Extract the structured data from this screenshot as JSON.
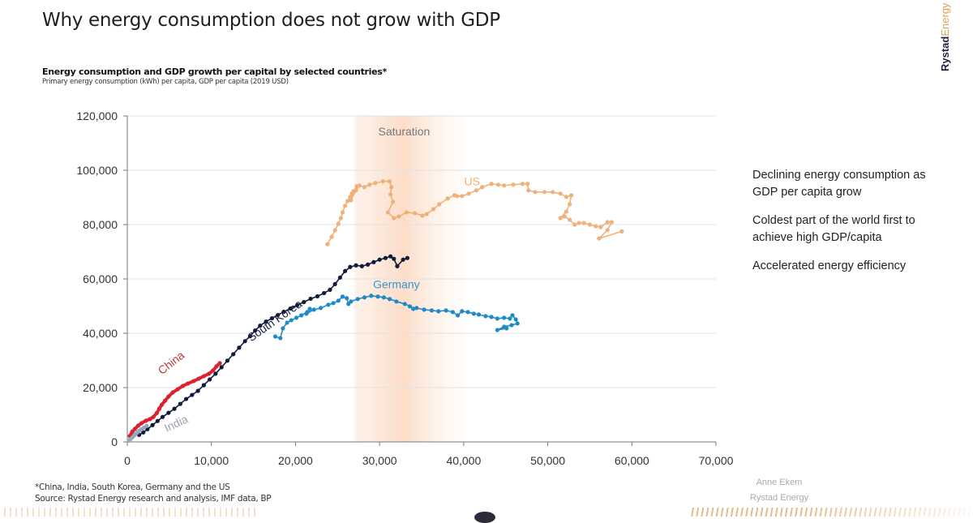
{
  "page": {
    "title": "Why energy consumption does not grow with GDP",
    "brand_part1": "Rystad",
    "brand_part2": "Energy",
    "notes": [
      "Declining energy consumption as GDP per capita grow",
      "Coldest part of the world first to achieve high GDP/capita",
      "Accelerated energy efficiency"
    ],
    "footnote_line1": "*China, India, South Korea, Germany and the US",
    "footnote_line2": "Source: Rystad Energy research and analysis, IMF data, BP",
    "author_name": "Anne Ekem",
    "author_org": "Rystad Energy"
  },
  "chart_data": {
    "type": "scatter",
    "title": "Energy consumption and GDP growth per capital by selected countries*",
    "subtitle": "Primary energy consumption (kWh) per capita, GDP per capita (2019 USD)",
    "xlabel": "GDP per capita (2019 USD)",
    "ylabel": "Primary energy consumption (kWh) per capita",
    "xlim": [
      0,
      70000
    ],
    "ylim": [
      0,
      120000
    ],
    "xticks": [
      0,
      10000,
      20000,
      30000,
      40000,
      50000,
      60000,
      70000
    ],
    "xtick_labels": [
      "0",
      "10,000",
      "20,000",
      "30,000",
      "40,000",
      "50,000",
      "60,000",
      "70,000"
    ],
    "yticks": [
      0,
      20000,
      40000,
      60000,
      80000,
      100000,
      120000
    ],
    "ytick_labels": [
      "0",
      "20,000",
      "40,000",
      "60,000",
      "80,000",
      "100,000",
      "120,000"
    ],
    "grid": "horizontal",
    "annotations": [
      {
        "text": "Saturation",
        "band_x": [
          27000,
          40000
        ],
        "color": "#f6c9a3"
      }
    ],
    "series": [
      {
        "name": "US",
        "label": "US",
        "color": "#f0b07a",
        "label_color": "#f0b07a",
        "label_at": [
          41000,
          94500
        ],
        "points": [
          [
            23800,
            72800
          ],
          [
            24300,
            75500
          ],
          [
            24700,
            77900
          ],
          [
            25100,
            80300
          ],
          [
            25400,
            82400
          ],
          [
            25600,
            84500
          ],
          [
            25900,
            86900
          ],
          [
            26200,
            88700
          ],
          [
            26500,
            90200
          ],
          [
            26900,
            92300
          ],
          [
            27300,
            94100
          ],
          [
            26700,
            91400
          ],
          [
            26600,
            89000
          ],
          [
            27200,
            92600
          ],
          [
            27600,
            94400
          ],
          [
            28200,
            93800
          ],
          [
            28800,
            94700
          ],
          [
            29500,
            95300
          ],
          [
            30400,
            95900
          ],
          [
            31200,
            95900
          ],
          [
            31400,
            93800
          ],
          [
            31300,
            91100
          ],
          [
            31600,
            88400
          ],
          [
            31000,
            84500
          ],
          [
            31700,
            82400
          ],
          [
            32300,
            83000
          ],
          [
            33200,
            84500
          ],
          [
            34200,
            84200
          ],
          [
            35100,
            83300
          ],
          [
            35600,
            83900
          ],
          [
            36400,
            85700
          ],
          [
            37100,
            87500
          ],
          [
            38100,
            89600
          ],
          [
            38900,
            90800
          ],
          [
            39200,
            90500
          ],
          [
            39800,
            90500
          ],
          [
            40600,
            91400
          ],
          [
            41500,
            92600
          ],
          [
            42200,
            93800
          ],
          [
            43300,
            95000
          ],
          [
            44100,
            94700
          ],
          [
            44800,
            94400
          ],
          [
            45900,
            94700
          ],
          [
            47000,
            95000
          ],
          [
            47600,
            95000
          ],
          [
            47700,
            92600
          ],
          [
            48500,
            92000
          ],
          [
            49600,
            92000
          ],
          [
            50600,
            92000
          ],
          [
            51500,
            91400
          ],
          [
            52200,
            90200
          ],
          [
            52800,
            90800
          ],
          [
            52600,
            87500
          ],
          [
            52200,
            84800
          ],
          [
            51500,
            82400
          ],
          [
            52000,
            83000
          ],
          [
            52600,
            81800
          ],
          [
            53200,
            80000
          ],
          [
            53700,
            80600
          ],
          [
            54300,
            80600
          ],
          [
            55000,
            80000
          ],
          [
            55700,
            79400
          ],
          [
            56300,
            79100
          ],
          [
            57100,
            80900
          ],
          [
            57600,
            80900
          ],
          [
            57100,
            78000
          ],
          [
            56100,
            74900
          ],
          [
            58800,
            77500
          ]
        ]
      },
      {
        "name": "Germany",
        "label": "Germany",
        "color": "#1f8ac8",
        "label_color": "#3a97cf",
        "label_at": [
          32000,
          56500
        ],
        "points": [
          [
            17600,
            38800
          ],
          [
            18200,
            38200
          ],
          [
            18500,
            41800
          ],
          [
            19000,
            43900
          ],
          [
            19500,
            44800
          ],
          [
            20100,
            45700
          ],
          [
            20700,
            46600
          ],
          [
            21400,
            47800
          ],
          [
            21700,
            49000
          ],
          [
            21300,
            47200
          ],
          [
            22200,
            48700
          ],
          [
            23000,
            49300
          ],
          [
            23900,
            50500
          ],
          [
            24500,
            51100
          ],
          [
            25100,
            52000
          ],
          [
            25600,
            53500
          ],
          [
            26100,
            52900
          ],
          [
            26300,
            50800
          ],
          [
            26600,
            51700
          ],
          [
            27400,
            52600
          ],
          [
            28200,
            53200
          ],
          [
            29000,
            53800
          ],
          [
            29800,
            53500
          ],
          [
            30500,
            53200
          ],
          [
            31200,
            52600
          ],
          [
            32000,
            51700
          ],
          [
            33000,
            50800
          ],
          [
            33600,
            49900
          ],
          [
            34000,
            49000
          ],
          [
            34400,
            49300
          ],
          [
            35300,
            48700
          ],
          [
            36200,
            48400
          ],
          [
            37000,
            48100
          ],
          [
            37900,
            48400
          ],
          [
            38700,
            47800
          ],
          [
            39300,
            46600
          ],
          [
            39800,
            48100
          ],
          [
            40500,
            47800
          ],
          [
            41200,
            47200
          ],
          [
            41800,
            46900
          ],
          [
            42600,
            46300
          ],
          [
            43300,
            46000
          ],
          [
            44000,
            45400
          ],
          [
            44800,
            45700
          ],
          [
            45500,
            45400
          ],
          [
            45800,
            46600
          ],
          [
            46200,
            45100
          ],
          [
            46400,
            43600
          ],
          [
            45700,
            43000
          ],
          [
            44800,
            42400
          ],
          [
            44000,
            41200
          ],
          [
            45100,
            41800
          ]
        ]
      },
      {
        "name": "South Korea",
        "label": "South Korea",
        "color": "#101a3a",
        "label_color": "#1c2340",
        "label_at": [
          17800,
          43500
        ],
        "points": [
          [
            1400,
            2600
          ],
          [
            1900,
            3500
          ],
          [
            2400,
            4700
          ],
          [
            3000,
            6200
          ],
          [
            3600,
            7700
          ],
          [
            4200,
            9200
          ],
          [
            4900,
            10700
          ],
          [
            5600,
            12200
          ],
          [
            6300,
            14000
          ],
          [
            7000,
            15800
          ],
          [
            7700,
            17300
          ],
          [
            8400,
            18800
          ],
          [
            9100,
            20900
          ],
          [
            9800,
            23000
          ],
          [
            10500,
            25100
          ],
          [
            11200,
            27500
          ],
          [
            11900,
            29900
          ],
          [
            12600,
            32300
          ],
          [
            13300,
            34700
          ],
          [
            14000,
            37100
          ],
          [
            14600,
            38900
          ],
          [
            15200,
            41000
          ],
          [
            15800,
            42800
          ],
          [
            16500,
            44300
          ],
          [
            17200,
            45500
          ],
          [
            17900,
            46700
          ],
          [
            18600,
            47900
          ],
          [
            19400,
            49100
          ],
          [
            20200,
            50300
          ],
          [
            21000,
            51500
          ],
          [
            21800,
            52700
          ],
          [
            22600,
            53600
          ],
          [
            23400,
            54800
          ],
          [
            24100,
            56000
          ],
          [
            24700,
            58100
          ],
          [
            25300,
            60500
          ],
          [
            25900,
            62900
          ],
          [
            26500,
            64400
          ],
          [
            27200,
            65000
          ],
          [
            27900,
            64700
          ],
          [
            28600,
            65300
          ],
          [
            29300,
            66200
          ],
          [
            30000,
            67100
          ],
          [
            30700,
            67700
          ],
          [
            31300,
            68300
          ],
          [
            31700,
            67400
          ],
          [
            32100,
            64700
          ],
          [
            32800,
            67100
          ],
          [
            33300,
            67700
          ]
        ]
      },
      {
        "name": "China",
        "label": "China",
        "color": "#d9242f",
        "label_color": "#c0393b",
        "label_at": [
          5500,
          28000
        ],
        "points": [
          [
            300,
            2200
          ],
          [
            600,
            3800
          ],
          [
            900,
            4800
          ],
          [
            1300,
            6000
          ],
          [
            1700,
            6900
          ],
          [
            2200,
            7800
          ],
          [
            2700,
            8400
          ],
          [
            3100,
            9200
          ],
          [
            3500,
            10600
          ],
          [
            3800,
            12200
          ],
          [
            4100,
            13700
          ],
          [
            4500,
            15200
          ],
          [
            4900,
            16700
          ],
          [
            5400,
            18200
          ],
          [
            6000,
            19400
          ],
          [
            6600,
            20600
          ],
          [
            7200,
            21500
          ],
          [
            7900,
            22400
          ],
          [
            8500,
            23300
          ],
          [
            9100,
            24200
          ],
          [
            9700,
            25100
          ],
          [
            10200,
            26300
          ],
          [
            10600,
            27800
          ],
          [
            11000,
            29000
          ]
        ]
      },
      {
        "name": "India",
        "label": "India",
        "color": "#9aa6b8",
        "label_color": "#9aa2ae",
        "label_at": [
          6000,
          5500
        ],
        "points": [
          [
            200,
            500
          ],
          [
            400,
            1100
          ],
          [
            600,
            1700
          ],
          [
            800,
            2300
          ],
          [
            1000,
            2900
          ],
          [
            1200,
            3500
          ],
          [
            1400,
            4100
          ],
          [
            1700,
            4700
          ],
          [
            2000,
            5300
          ],
          [
            2300,
            5900
          ]
        ]
      }
    ]
  }
}
